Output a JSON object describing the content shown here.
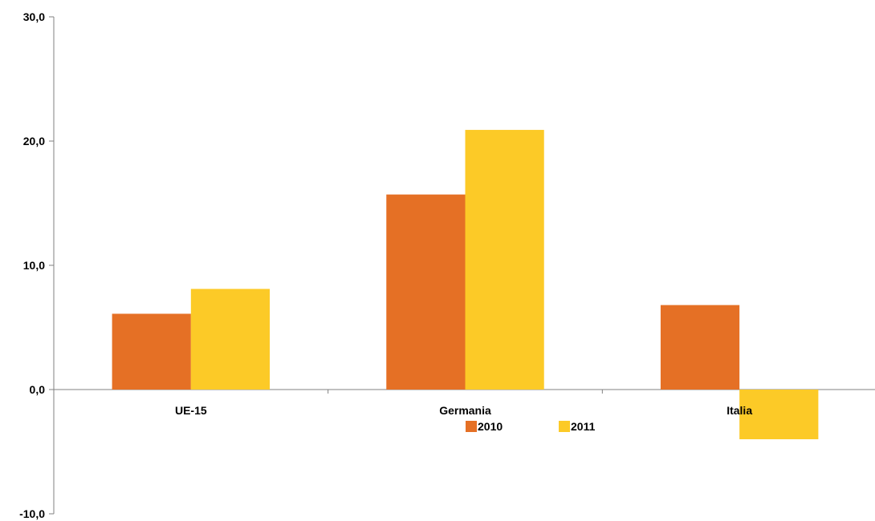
{
  "chart_data": {
    "type": "bar",
    "categories": [
      "UE-15",
      "Germania",
      "Italia"
    ],
    "series": [
      {
        "name": "2010",
        "values": [
          6.1,
          15.7,
          6.8
        ],
        "color": "#E57025"
      },
      {
        "name": "2011",
        "values": [
          8.1,
          20.9,
          -4.0
        ],
        "color": "#FCCA27"
      }
    ],
    "ylim": [
      -10,
      30
    ],
    "yticks": [
      -10,
      0,
      10,
      20,
      30
    ],
    "ytick_labels": [
      "-10,0",
      "0,0",
      "10,0",
      "20,0",
      "30,0"
    ],
    "grid": false,
    "legend_position": "bottom-center",
    "title": "",
    "xlabel": "",
    "ylabel": ""
  }
}
